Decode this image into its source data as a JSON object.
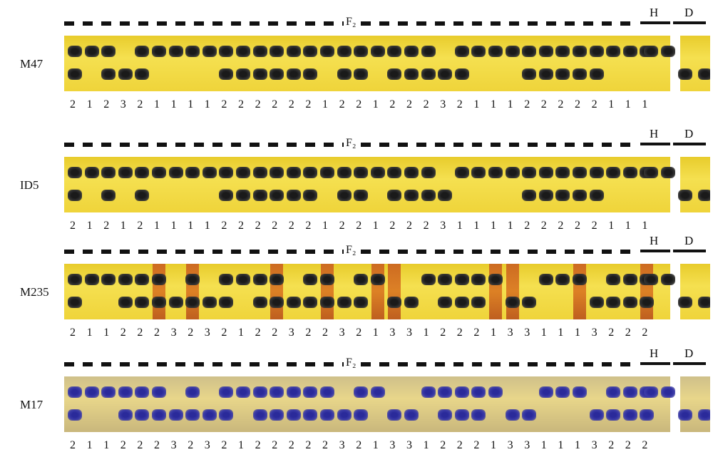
{
  "group_label": "F₂",
  "parent_h": "H",
  "parent_d": "D",
  "panels": [
    {
      "marker": "M47",
      "scores": [
        "2",
        "1",
        "2",
        "3",
        "2",
        "1",
        "1",
        "1",
        "1",
        "2",
        "2",
        "2",
        "2",
        "2",
        "2",
        "1",
        "2",
        "2",
        "1",
        "2",
        "2",
        "2",
        "3",
        "2",
        "1",
        "1",
        "1",
        "2",
        "2",
        "2",
        "2",
        "2",
        "1",
        "1",
        "1"
      ]
    },
    {
      "marker": "ID5",
      "scores": [
        "2",
        "1",
        "2",
        "1",
        "2",
        "1",
        "1",
        "1",
        "1",
        "2",
        "2",
        "2",
        "2",
        "2",
        "2",
        "1",
        "2",
        "2",
        "1",
        "2",
        "2",
        "2",
        "3",
        "1",
        "1",
        "1",
        "1",
        "2",
        "2",
        "2",
        "2",
        "2",
        "1",
        "1",
        "1"
      ]
    },
    {
      "marker": "M235",
      "scores": [
        "2",
        "1",
        "1",
        "2",
        "2",
        "2",
        "3",
        "2",
        "3",
        "2",
        "1",
        "2",
        "2",
        "3",
        "2",
        "2",
        "3",
        "2",
        "1",
        "3",
        "3",
        "1",
        "2",
        "2",
        "2",
        "1",
        "3",
        "3",
        "1",
        "1",
        "1",
        "3",
        "2",
        "2",
        "2"
      ]
    },
    {
      "marker": "M17",
      "scores": [
        "2",
        "1",
        "1",
        "2",
        "2",
        "2",
        "3",
        "2",
        "3",
        "2",
        "1",
        "2",
        "2",
        "2",
        "2",
        "2",
        "3",
        "2",
        "1",
        "3",
        "3",
        "1",
        "2",
        "2",
        "2",
        "1",
        "3",
        "3",
        "1",
        "1",
        "1",
        "3",
        "2",
        "2",
        "2"
      ]
    }
  ]
}
